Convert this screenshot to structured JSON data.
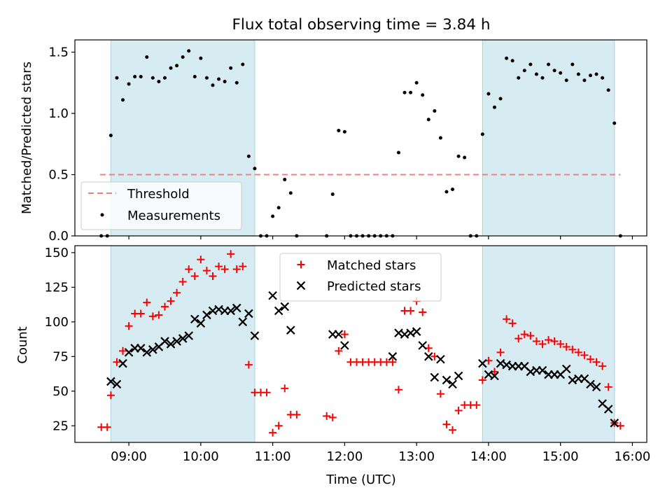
{
  "title": "Flux total observing time = 3.84 h",
  "colors": {
    "shade": "#add8e6",
    "threshold": "#f08080",
    "measurement": "#000000",
    "matched": "#ff0000",
    "predicted": "#000000"
  },
  "chart_data": [
    {
      "type": "scatter",
      "ylabel": "Matched/Predicted stars",
      "ylim": [
        0,
        1.6
      ],
      "yticks": [
        0,
        0.5,
        1.0,
        1.5
      ],
      "ytick_labels": [
        "0.0",
        "0.5",
        "1.0",
        "1.5"
      ],
      "xlim": [
        "08:15",
        "16:12"
      ],
      "xticks": [
        "09:00",
        "10:00",
        "11:00",
        "12:00",
        "13:00",
        "14:00",
        "15:00",
        "16:00"
      ],
      "xtick_labels_shown": false,
      "shaded_intervals": [
        [
          "08:45",
          "10:45"
        ],
        [
          "13:55",
          "15:45"
        ]
      ],
      "threshold": {
        "name": "Threshold",
        "y": 0.5,
        "x": [
          "08:36",
          "15:50"
        ],
        "style": "dashed"
      },
      "legend": {
        "position": "lower-left",
        "entries": [
          "Threshold",
          "Measurements"
        ]
      },
      "series": [
        {
          "name": "Measurements",
          "marker": "dot",
          "x": [
            "08:37",
            "08:42",
            "08:45",
            "08:50",
            "08:55",
            "09:00",
            "09:05",
            "09:10",
            "09:15",
            "09:20",
            "09:25",
            "09:30",
            "09:35",
            "09:40",
            "09:45",
            "09:50",
            "09:55",
            "10:00",
            "10:05",
            "10:10",
            "10:15",
            "10:20",
            "10:25",
            "10:30",
            "10:35",
            "10:40",
            "10:45",
            "10:50",
            "10:55",
            "11:00",
            "11:05",
            "11:10",
            "11:15",
            "11:20",
            "11:45",
            "11:50",
            "11:55",
            "12:00",
            "12:05",
            "12:10",
            "12:15",
            "12:20",
            "12:25",
            "12:30",
            "12:35",
            "12:40",
            "12:45",
            "12:50",
            "12:55",
            "13:00",
            "13:05",
            "13:10",
            "13:15",
            "13:20",
            "13:25",
            "13:30",
            "13:35",
            "13:40",
            "13:45",
            "13:50",
            "13:55",
            "14:00",
            "14:05",
            "14:10",
            "14:15",
            "14:20",
            "14:25",
            "14:30",
            "14:35",
            "14:40",
            "14:45",
            "14:50",
            "14:55",
            "15:00",
            "15:05",
            "15:10",
            "15:15",
            "15:20",
            "15:25",
            "15:30",
            "15:35",
            "15:40",
            "15:45",
            "15:50"
          ],
          "y": [
            0,
            0,
            0.82,
            1.29,
            1.11,
            1.24,
            1.3,
            1.3,
            1.46,
            1.29,
            1.26,
            1.29,
            1.37,
            1.39,
            1.46,
            1.51,
            1.3,
            1.45,
            1.29,
            1.23,
            1.28,
            1.26,
            1.37,
            1.25,
            1.4,
            0.65,
            0.55,
            0,
            0,
            0.16,
            0.23,
            0.46,
            0.35,
            0,
            0,
            0.34,
            0.86,
            0.85,
            0,
            0,
            0,
            0,
            0,
            0,
            0,
            0,
            0.68,
            1.17,
            1.17,
            1.25,
            1.15,
            0.95,
            1.02,
            0.8,
            0.36,
            0.38,
            0.65,
            0.64,
            0,
            0,
            0.83,
            1.16,
            1.05,
            1.12,
            1.45,
            1.43,
            1.29,
            1.35,
            1.4,
            1.32,
            1.29,
            1.4,
            1.35,
            1.33,
            1.27,
            1.4,
            1.32,
            1.27,
            1.31,
            1.32,
            1.29,
            1.19,
            0.92,
            0
          ]
        }
      ]
    },
    {
      "type": "scatter",
      "xlabel": "Time (UTC)",
      "ylabel": "Count",
      "ylim": [
        13,
        155
      ],
      "yticks": [
        25,
        50,
        75,
        100,
        125,
        150
      ],
      "ytick_labels": [
        "25",
        "50",
        "75",
        "100",
        "125",
        "150"
      ],
      "xlim": [
        "08:15",
        "16:12"
      ],
      "xticks": [
        "09:00",
        "10:00",
        "11:00",
        "12:00",
        "13:00",
        "14:00",
        "15:00",
        "16:00"
      ],
      "xtick_labels": [
        "09:00",
        "10:00",
        "11:00",
        "12:00",
        "13:00",
        "14:00",
        "15:00",
        "16:00"
      ],
      "shaded_intervals": [
        [
          "08:45",
          "10:45"
        ],
        [
          "13:55",
          "15:45"
        ]
      ],
      "legend": {
        "position": "upper-center",
        "entries": [
          "Matched stars",
          "Predicted stars"
        ]
      },
      "series": [
        {
          "name": "Matched stars",
          "marker": "plus",
          "x": [
            "08:37",
            "08:42",
            "08:45",
            "08:50",
            "08:55",
            "09:00",
            "09:05",
            "09:10",
            "09:15",
            "09:20",
            "09:25",
            "09:30",
            "09:35",
            "09:40",
            "09:45",
            "09:50",
            "09:55",
            "10:00",
            "10:05",
            "10:10",
            "10:15",
            "10:20",
            "10:25",
            "10:30",
            "10:35",
            "10:40",
            "10:45",
            "10:50",
            "10:55",
            "11:00",
            "11:05",
            "11:10",
            "11:15",
            "11:20",
            "11:45",
            "11:50",
            "11:55",
            "12:00",
            "12:05",
            "12:10",
            "12:15",
            "12:20",
            "12:25",
            "12:30",
            "12:35",
            "12:40",
            "12:45",
            "12:50",
            "12:55",
            "13:00",
            "13:05",
            "13:10",
            "13:15",
            "13:20",
            "13:25",
            "13:30",
            "13:35",
            "13:40",
            "13:45",
            "13:50",
            "13:55",
            "14:00",
            "14:05",
            "14:10",
            "14:15",
            "14:20",
            "14:25",
            "14:30",
            "14:35",
            "14:40",
            "14:45",
            "14:50",
            "14:55",
            "15:00",
            "15:05",
            "15:10",
            "15:15",
            "15:20",
            "15:25",
            "15:30",
            "15:35",
            "15:40",
            "15:45",
            "15:50"
          ],
          "y": [
            24,
            24,
            47,
            71,
            79,
            97,
            106,
            106,
            114,
            104,
            105,
            111,
            115,
            121,
            129,
            138,
            133,
            145,
            137,
            133,
            140,
            138,
            149,
            138,
            140,
            69,
            49,
            49,
            49,
            20,
            25,
            52,
            33,
            33,
            32,
            31,
            79,
            91,
            71,
            71,
            71,
            71,
            71,
            71,
            71,
            71,
            51,
            108,
            108,
            115,
            107,
            81,
            75,
            48,
            26,
            22,
            36,
            40,
            40,
            40,
            58,
            72,
            64,
            78,
            102,
            99,
            88,
            91,
            90,
            86,
            84,
            87,
            86,
            84,
            82,
            80,
            78,
            76,
            73,
            71,
            68,
            53,
            27,
            25
          ]
        },
        {
          "name": "Predicted stars",
          "marker": "x",
          "x": [
            "08:45",
            "08:50",
            "08:55",
            "09:00",
            "09:05",
            "09:10",
            "09:15",
            "09:20",
            "09:25",
            "09:30",
            "09:35",
            "09:40",
            "09:45",
            "09:50",
            "09:55",
            "10:00",
            "10:05",
            "10:10",
            "10:15",
            "10:20",
            "10:25",
            "10:30",
            "10:35",
            "10:40",
            "10:45",
            "11:00",
            "11:05",
            "11:10",
            "11:15",
            "11:50",
            "11:55",
            "12:00",
            "12:40",
            "12:45",
            "12:50",
            "12:55",
            "13:00",
            "13:05",
            "13:10",
            "13:15",
            "13:20",
            "13:25",
            "13:30",
            "13:35",
            "13:55",
            "14:00",
            "14:05",
            "14:10",
            "14:15",
            "14:20",
            "14:25",
            "14:30",
            "14:35",
            "14:40",
            "14:45",
            "14:50",
            "14:55",
            "15:00",
            "15:05",
            "15:10",
            "15:15",
            "15:20",
            "15:25",
            "15:30",
            "15:35",
            "15:40",
            "15:45"
          ],
          "y": [
            57,
            55,
            70,
            78,
            81,
            81,
            78,
            80,
            82,
            86,
            84,
            86,
            88,
            90,
            102,
            99,
            105,
            108,
            109,
            108,
            108,
            110,
            100,
            106,
            90,
            119,
            108,
            111,
            94,
            91,
            91,
            83,
            75,
            92,
            91,
            92,
            93,
            83,
            75,
            60,
            73,
            58,
            55,
            61,
            70,
            62,
            61,
            70,
            69,
            68,
            68,
            68,
            64,
            65,
            65,
            62,
            62,
            62,
            66,
            58,
            59,
            59,
            55,
            53,
            41,
            37,
            27
          ]
        }
      ]
    }
  ]
}
